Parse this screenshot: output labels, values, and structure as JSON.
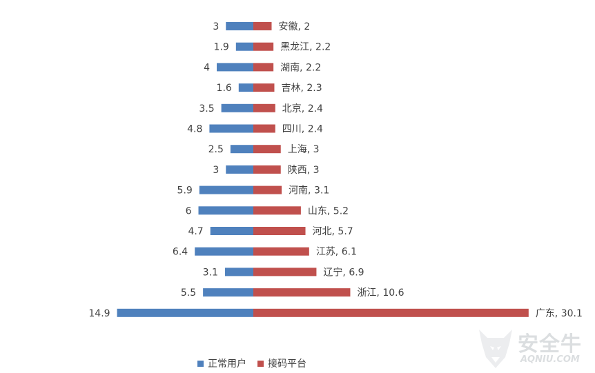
{
  "chart_data": {
    "type": "bar",
    "orientation": "horizontal-butterfly",
    "categories": [
      "安徽",
      "黑龙江",
      "湖南",
      "吉林",
      "北京",
      "四川",
      "上海",
      "陕西",
      "河南",
      "山东",
      "河北",
      "江苏",
      "辽宁",
      "浙江",
      "广东"
    ],
    "series": [
      {
        "name": "正常用户",
        "color": "#4f81bd",
        "values": [
          3,
          1.9,
          4,
          1.6,
          3.5,
          4.8,
          2.5,
          3,
          5.9,
          6,
          4.7,
          6.4,
          3.1,
          5.5,
          14.9
        ]
      },
      {
        "name": "接码平台",
        "color": "#c0504d",
        "values": [
          2,
          2.2,
          2.2,
          2.3,
          2.4,
          2.4,
          3,
          3,
          3.1,
          5.2,
          5.7,
          6.1,
          6.9,
          10.6,
          30.1
        ]
      }
    ],
    "legend_position": "bottom",
    "grid": false
  },
  "watermark": {
    "name": "安全牛",
    "sub": "AQNIU.COM"
  }
}
